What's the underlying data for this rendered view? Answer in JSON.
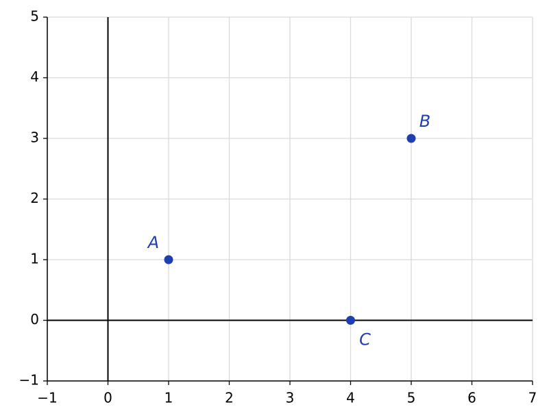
{
  "chart_data": {
    "type": "scatter",
    "x": [
      1,
      5,
      4
    ],
    "values": [
      1,
      3,
      0
    ],
    "point_labels": [
      "A",
      "B",
      "C"
    ],
    "color": "#1f3fb0",
    "xlim": [
      -1,
      7
    ],
    "ylim": [
      -1,
      5
    ],
    "xticks": [
      {
        "value": -1,
        "label": "−1"
      },
      0,
      1,
      2,
      3,
      4,
      5,
      6,
      7
    ],
    "yticks": [
      {
        "value": -1,
        "label": "−1"
      },
      0,
      1,
      2,
      3,
      4,
      5
    ],
    "grid": true
  }
}
